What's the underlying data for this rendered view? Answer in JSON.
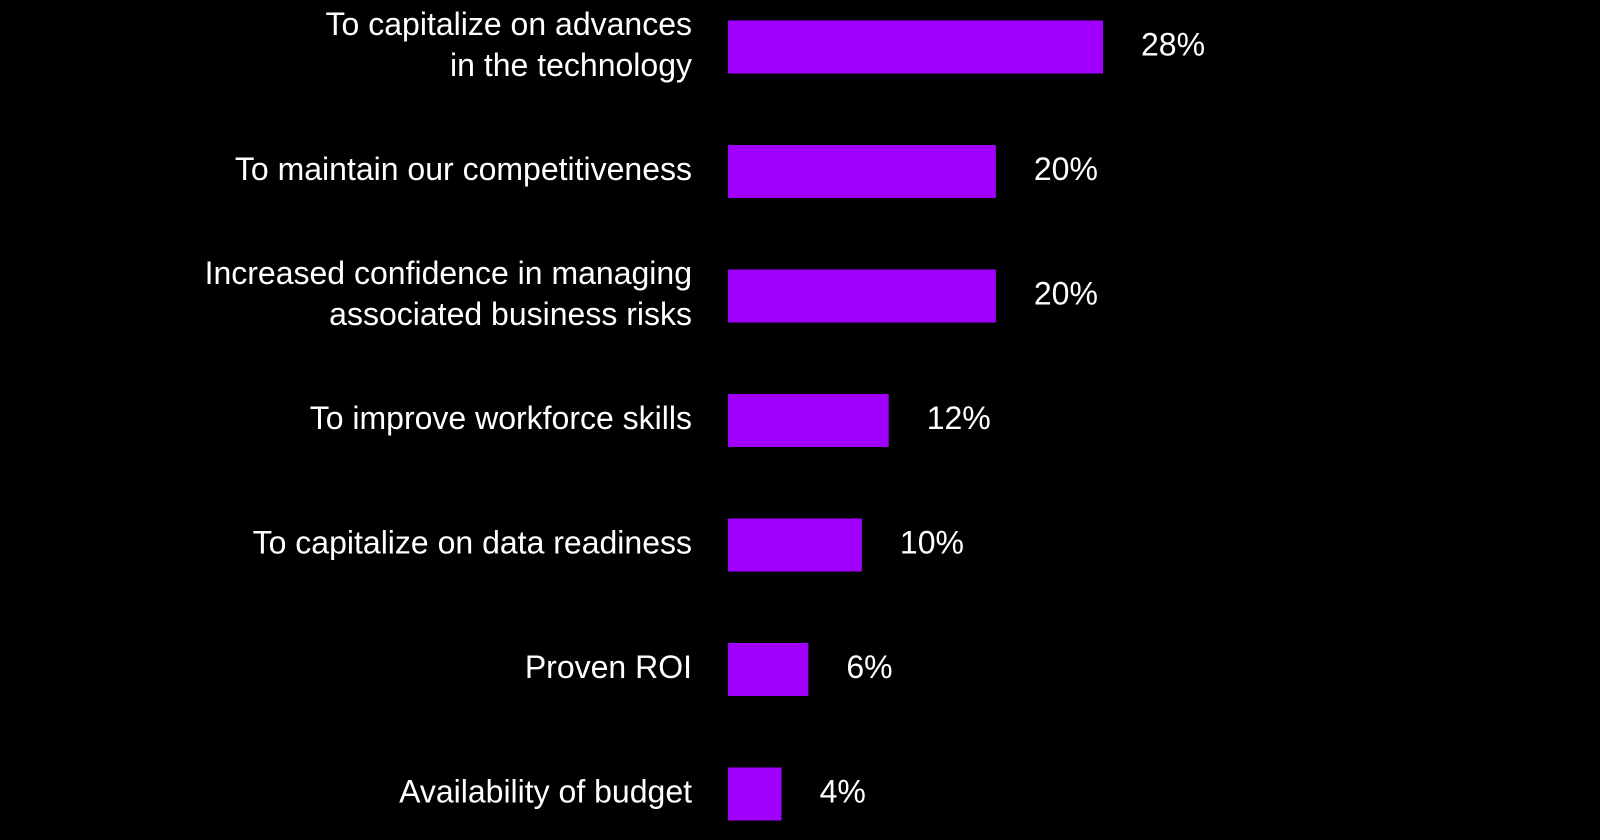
{
  "chart_data": {
    "type": "bar",
    "orientation": "horizontal",
    "categories": [
      [
        "To capitalize on advances",
        "in the technology"
      ],
      [
        "To maintain our competitiveness"
      ],
      [
        "Increased confidence in managing",
        "associated business risks"
      ],
      [
        "To improve workforce skills"
      ],
      [
        "To capitalize on data readiness"
      ],
      [
        "Proven ROI"
      ],
      [
        "Availability of budget"
      ]
    ],
    "values": [
      28,
      20,
      20,
      12,
      10,
      6,
      4
    ],
    "value_labels": [
      "28%",
      "20%",
      "20%",
      "12%",
      "10%",
      "6%",
      "4%"
    ],
    "title": "",
    "xlabel": "",
    "ylabel": "",
    "xlim": [
      0,
      28
    ],
    "grid": false,
    "legend": "none",
    "colors": {
      "background": "#000000",
      "bar": "#A100FF",
      "text": "#FFFFFF"
    }
  }
}
